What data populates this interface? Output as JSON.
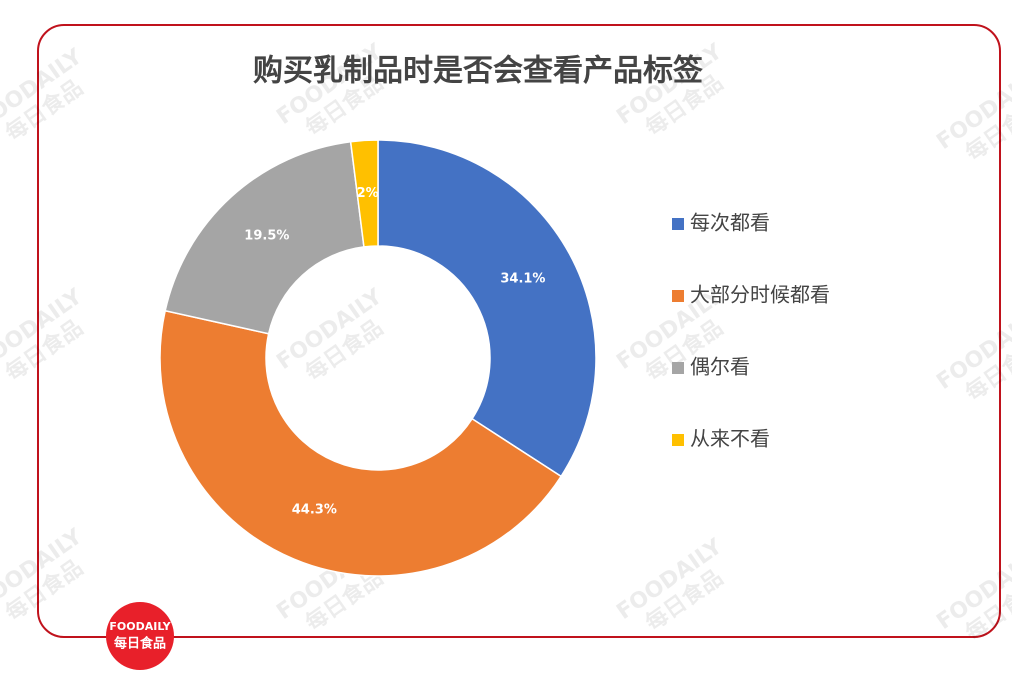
{
  "chart_data": {
    "type": "donut",
    "title": "购买乳制品时是否会查看产品标签",
    "categories": [
      "每次都看",
      "大部分时候都看",
      "偶尔看",
      "从来不看"
    ],
    "values": [
      34.1,
      44.3,
      19.5,
      2
    ],
    "value_labels": [
      "34.1%",
      "44.3%",
      "19.5%",
      "2%"
    ],
    "colors": [
      "#4472c4",
      "#ed7d31",
      "#a5a5a5",
      "#ffc000"
    ],
    "legend": "right"
  },
  "logo": {
    "brand": "FOODAILY",
    "name": "每日食品"
  },
  "watermark": {
    "brand": "FOODAILY",
    "name": "每日食品"
  }
}
